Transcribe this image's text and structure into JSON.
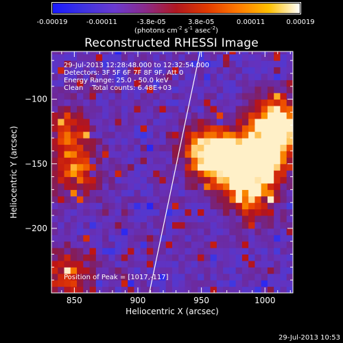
{
  "colorbar": {
    "ticks": [
      "-0.00019",
      "-0.00011",
      "-3.8e-05",
      "3.8e-05",
      "0.00011",
      "0.00019"
    ],
    "unit_prefix": "(photons cm",
    "unit_exp1": "-2",
    "unit_mid": " s",
    "unit_exp2": "-1",
    "unit_mid2": " asec",
    "unit_exp3": "-2",
    "unit_suffix": ")",
    "colors": [
      "#1a1aff",
      "#3f33e0",
      "#6a3ad0",
      "#8a2a8a",
      "#b01820",
      "#e23a00",
      "#ff7a00",
      "#ffc000",
      "#ffffff"
    ]
  },
  "timestamp": "29-Jul-2013 10:53",
  "chart_data": {
    "type": "heatmap",
    "title": "Reconstructed RHESSI Image",
    "xlabel": "Heliocentric X (arcsec)",
    "ylabel": "Heliocentric Y (arcsec)",
    "xlim": [
      832,
      1022
    ],
    "ylim": [
      -250,
      -63
    ],
    "xticks": [
      850,
      900,
      950,
      1000
    ],
    "yticks": [
      -100,
      -150,
      -200
    ],
    "xtick_labels": [
      "850",
      "900",
      "950",
      "1000"
    ],
    "ytick_labels": [
      "-100",
      "-150",
      "-200"
    ],
    "annotations": [
      "29-Jul-2013 12:28:48.000 to 12:32:54.000",
      "Detectors: 3F 5F 6F 7F 8F 9F, Att 0",
      "Energy Range: 25.0 - 50.0 keV",
      "Clean    Total counts: 6.48E+03"
    ],
    "peak_label": "Position of Peak = [1017,-117]",
    "peak": [
      1017,
      -117
    ],
    "limb_line": [
      [
        909,
        -250
      ],
      [
        949,
        -63
      ]
    ],
    "hot_regions": [
      {
        "x": 1010,
        "y": -118,
        "level": 1.0
      },
      {
        "x": 1000,
        "y": -140,
        "level": 0.9
      },
      {
        "x": 975,
        "y": -150,
        "level": 0.85
      },
      {
        "x": 955,
        "y": -140,
        "level": 0.9
      },
      {
        "x": 990,
        "y": -170,
        "level": 0.8
      },
      {
        "x": 850,
        "y": -155,
        "level": 0.6
      },
      {
        "x": 845,
        "y": -125,
        "level": 0.45
      },
      {
        "x": 845,
        "y": -235,
        "level": 0.5
      }
    ]
  }
}
